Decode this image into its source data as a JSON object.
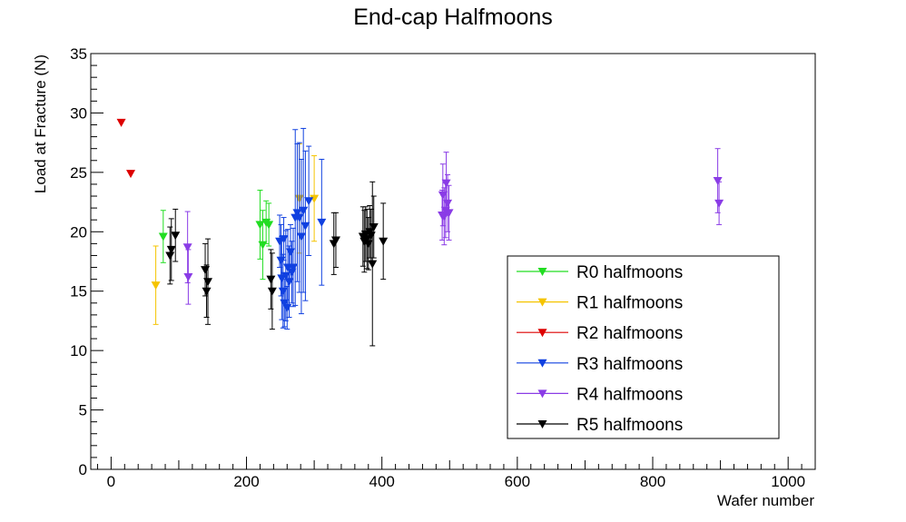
{
  "chart_data": {
    "type": "scatter",
    "title": "End-cap Halfmoons",
    "xlabel": "Wafer number",
    "ylabel": "Load at Fracture (N)",
    "xlim": [
      -30,
      1040
    ],
    "ylim": [
      0,
      35
    ],
    "xticks": [
      0,
      200,
      400,
      600,
      800,
      1000
    ],
    "yticks": [
      0,
      5,
      10,
      15,
      20,
      25,
      30,
      35
    ],
    "grid": false,
    "legend_position": "bottom-right",
    "marker": "triangle-down",
    "series": [
      {
        "name": "R0 halfmoons",
        "color": "#22dd22",
        "points": [
          {
            "x": 77,
            "y": 19.6,
            "err": 2.2
          },
          {
            "x": 220,
            "y": 20.6,
            "err": 2.9
          },
          {
            "x": 224,
            "y": 18.9,
            "err": 2.9
          },
          {
            "x": 229,
            "y": 20.8,
            "err": 1.8
          },
          {
            "x": 233,
            "y": 20.6,
            "err": 1.8
          }
        ]
      },
      {
        "name": "R1 halfmoons",
        "color": "#f5c400",
        "points": [
          {
            "x": 66,
            "y": 15.5,
            "err": 3.3
          },
          {
            "x": 278,
            "y": 22.8,
            "err": 4.6
          },
          {
            "x": 300,
            "y": 22.8,
            "err": 3.6
          }
        ]
      },
      {
        "name": "R2 halfmoons",
        "color": "#dd0000",
        "points": [
          {
            "x": 15,
            "y": 29.2,
            "err": 0
          },
          {
            "x": 29,
            "y": 24.9,
            "err": 0
          }
        ]
      },
      {
        "name": "R3 halfmoons",
        "color": "#1040e0",
        "points": [
          {
            "x": 249,
            "y": 19.2,
            "err": 2.2
          },
          {
            "x": 251,
            "y": 17.6,
            "err": 3.0
          },
          {
            "x": 252,
            "y": 16.1,
            "err": 3.5
          },
          {
            "x": 254,
            "y": 15.0,
            "err": 3.1
          },
          {
            "x": 255,
            "y": 19.4,
            "err": 1.8
          },
          {
            "x": 256,
            "y": 14.0,
            "err": 2.0
          },
          {
            "x": 258,
            "y": 16.3,
            "err": 3.8
          },
          {
            "x": 260,
            "y": 13.6,
            "err": 1.8
          },
          {
            "x": 261,
            "y": 17.0,
            "err": 3.2
          },
          {
            "x": 263,
            "y": 15.8,
            "err": 3.0
          },
          {
            "x": 265,
            "y": 18.3,
            "err": 2.3
          },
          {
            "x": 267,
            "y": 16.6,
            "err": 2.6
          },
          {
            "x": 269,
            "y": 17.0,
            "err": 3.3
          },
          {
            "x": 272,
            "y": 21.2,
            "err": 7.4
          },
          {
            "x": 275,
            "y": 21.6,
            "err": 5.8
          },
          {
            "x": 278,
            "y": 21.2,
            "err": 6.3
          },
          {
            "x": 281,
            "y": 19.6,
            "err": 6.5
          },
          {
            "x": 284,
            "y": 21.8,
            "err": 6.9
          },
          {
            "x": 287,
            "y": 20.5,
            "err": 6.3
          },
          {
            "x": 292,
            "y": 22.6,
            "err": 4.6
          },
          {
            "x": 311,
            "y": 20.8,
            "err": 5.3
          }
        ]
      },
      {
        "name": "R4 halfmoons",
        "color": "#8a3ce6",
        "points": [
          {
            "x": 113,
            "y": 18.7,
            "err": 3.0
          },
          {
            "x": 114,
            "y": 16.2,
            "err": 2.3
          },
          {
            "x": 489,
            "y": 21.4,
            "err": 2.1
          },
          {
            "x": 490,
            "y": 23.1,
            "err": 2.6
          },
          {
            "x": 492,
            "y": 21.3,
            "err": 2.4
          },
          {
            "x": 494,
            "y": 21.8,
            "err": 2.3
          },
          {
            "x": 495,
            "y": 24.1,
            "err": 2.6
          },
          {
            "x": 497,
            "y": 22.4,
            "err": 2.4
          },
          {
            "x": 499,
            "y": 21.6,
            "err": 2.3
          },
          {
            "x": 896,
            "y": 24.3,
            "err": 2.7
          },
          {
            "x": 898,
            "y": 22.4,
            "err": 1.8
          }
        ]
      },
      {
        "name": "R5 halfmoons",
        "color": "#000000",
        "points": [
          {
            "x": 87,
            "y": 18.0,
            "err": 2.4
          },
          {
            "x": 89,
            "y": 18.5,
            "err": 2.6
          },
          {
            "x": 95,
            "y": 19.7,
            "err": 2.2
          },
          {
            "x": 139,
            "y": 16.8,
            "err": 2.2
          },
          {
            "x": 141,
            "y": 15.0,
            "err": 2.2
          },
          {
            "x": 143,
            "y": 15.8,
            "err": 3.6
          },
          {
            "x": 236,
            "y": 16.0,
            "err": 2.5
          },
          {
            "x": 238,
            "y": 15.0,
            "err": 3.2
          },
          {
            "x": 329,
            "y": 19.0,
            "err": 2.6
          },
          {
            "x": 332,
            "y": 19.3,
            "err": 2.3
          },
          {
            "x": 372,
            "y": 19.6,
            "err": 2.5
          },
          {
            "x": 374,
            "y": 19.2,
            "err": 2.6
          },
          {
            "x": 376,
            "y": 19.8,
            "err": 2.3
          },
          {
            "x": 378,
            "y": 19.4,
            "err": 2.5
          },
          {
            "x": 380,
            "y": 19.0,
            "err": 2.2
          },
          {
            "x": 382,
            "y": 20.0,
            "err": 2.2
          },
          {
            "x": 384,
            "y": 19.7,
            "err": 2.2
          },
          {
            "x": 386,
            "y": 17.3,
            "err": 6.9
          },
          {
            "x": 388,
            "y": 20.4,
            "err": 2.6
          },
          {
            "x": 402,
            "y": 19.2,
            "err": 3.2
          }
        ]
      }
    ]
  }
}
